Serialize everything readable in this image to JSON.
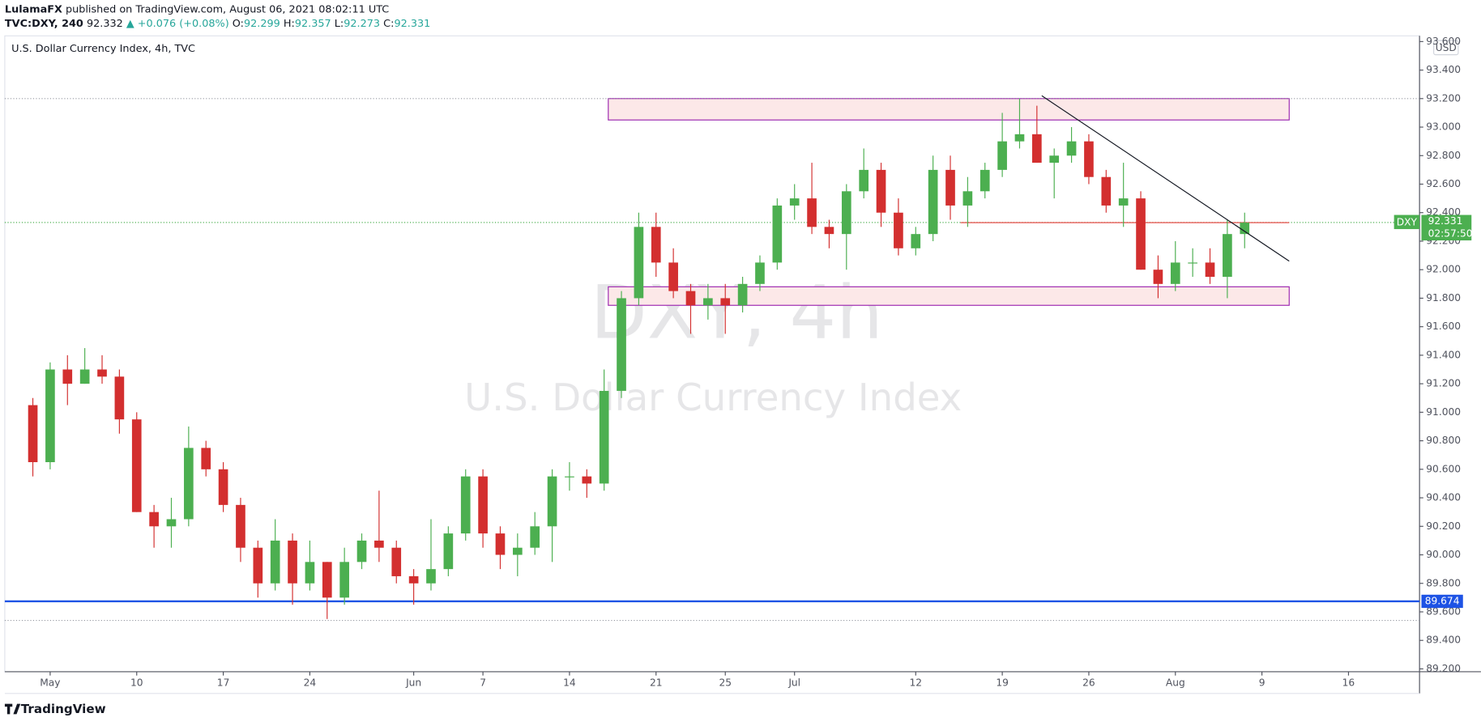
{
  "header": {
    "author": "LulamaFX",
    "published": "published on TradingView.com, August 06, 2021 08:02:11 UTC",
    "symbol": "TVC:DXY, 240",
    "price": "92.332",
    "change": "▲ +0.076 (+0.08%)",
    "open_label": "O:",
    "open": "92.299",
    "high_label": "H:",
    "high": "92.357",
    "low_label": "L:",
    "low": "92.273",
    "close_label": "C:",
    "close": "92.331"
  },
  "chart_data": {
    "type": "candlestick",
    "title": "U.S. Dollar Currency Index, 4h, TVC",
    "watermark": "DXY, 4h",
    "watermark_subtitle": "U.S. Dollar Currency Index",
    "currency": "USD",
    "symbol_tag": "DXY",
    "last_price": 92.331,
    "countdown": "02:57:50",
    "up_color": "#4caf50",
    "down_color": "#d32f2f",
    "categories": [
      null,
      "May",
      null,
      null,
      null,
      null,
      "10",
      null,
      null,
      null,
      null,
      "17",
      null,
      null,
      null,
      null,
      "24",
      null,
      null,
      null,
      null,
      null,
      "Jun",
      null,
      null,
      null,
      "7",
      null,
      null,
      null,
      null,
      "14",
      null,
      null,
      null,
      null,
      "21",
      null,
      null,
      null,
      "25",
      null,
      null,
      null,
      "Jul",
      null,
      null,
      null,
      null,
      null,
      null,
      "12",
      null,
      null,
      null,
      null,
      "19",
      null,
      null,
      null,
      null,
      "26",
      null,
      null,
      null,
      null,
      "Aug",
      null,
      null,
      null,
      null,
      "9",
      null,
      null,
      null,
      null,
      "16"
    ],
    "open": [
      91.05,
      90.65,
      91.3,
      91.2,
      91.3,
      91.25,
      90.95,
      90.3,
      90.2,
      90.25,
      90.75,
      90.6,
      90.35,
      90.05,
      89.8,
      90.1,
      89.8,
      89.95,
      89.7,
      89.95,
      90.1,
      90.05,
      89.85,
      89.8,
      89.9,
      90.15,
      90.55,
      90.15,
      90.0,
      90.05,
      90.2,
      90.55,
      90.55,
      90.5,
      91.15,
      91.8,
      92.3,
      92.05,
      91.85,
      91.75,
      91.8,
      91.75,
      91.9,
      92.05,
      92.45,
      92.5,
      92.3,
      92.25,
      92.55,
      92.7,
      92.4,
      92.15,
      92.25,
      92.7,
      92.45,
      92.55,
      92.7,
      92.9,
      92.95,
      92.75,
      92.8,
      92.9,
      92.65,
      92.45,
      92.5,
      92.0,
      91.9,
      92.05,
      92.05,
      91.95,
      92.25,
      null,
      null,
      null,
      null,
      null,
      null
    ],
    "high": [
      91.1,
      91.35,
      91.4,
      91.45,
      91.4,
      91.3,
      91.0,
      90.35,
      90.4,
      90.9,
      90.8,
      90.65,
      90.4,
      90.1,
      90.25,
      90.15,
      90.1,
      89.95,
      90.05,
      90.15,
      90.45,
      90.1,
      89.9,
      90.25,
      90.2,
      90.6,
      90.6,
      90.2,
      90.15,
      90.3,
      90.6,
      90.65,
      90.6,
      91.3,
      91.85,
      92.4,
      92.4,
      92.15,
      91.9,
      91.9,
      91.9,
      91.95,
      92.1,
      92.5,
      92.6,
      92.75,
      92.35,
      92.6,
      92.85,
      92.75,
      92.5,
      92.3,
      92.8,
      92.8,
      92.65,
      92.75,
      93.1,
      93.2,
      93.15,
      92.85,
      93.0,
      92.95,
      92.7,
      92.75,
      92.55,
      92.1,
      92.2,
      92.15,
      92.15,
      92.35,
      92.4,
      null,
      null,
      null,
      null,
      null,
      null
    ],
    "low": [
      90.55,
      90.6,
      91.05,
      91.2,
      91.2,
      90.85,
      90.3,
      90.05,
      90.05,
      90.2,
      90.55,
      90.3,
      89.95,
      89.7,
      89.75,
      89.65,
      89.75,
      89.55,
      89.65,
      89.9,
      89.95,
      89.8,
      89.65,
      89.75,
      89.85,
      90.1,
      90.05,
      89.9,
      89.85,
      90.0,
      89.95,
      90.45,
      90.4,
      90.45,
      91.1,
      91.75,
      91.95,
      91.8,
      91.55,
      91.65,
      91.55,
      91.7,
      91.85,
      92.0,
      92.35,
      92.25,
      92.15,
      92.0,
      92.5,
      92.3,
      92.1,
      92.1,
      92.2,
      92.35,
      92.3,
      92.5,
      92.65,
      92.85,
      92.75,
      92.5,
      92.75,
      92.6,
      92.4,
      92.3,
      92.0,
      91.8,
      91.85,
      91.95,
      91.9,
      91.8,
      92.15,
      null,
      null,
      null,
      null,
      null,
      null
    ],
    "close": [
      90.65,
      91.3,
      91.2,
      91.3,
      91.25,
      90.95,
      90.3,
      90.2,
      90.25,
      90.75,
      90.6,
      90.35,
      90.05,
      89.8,
      90.1,
      89.8,
      89.95,
      89.7,
      89.95,
      90.1,
      90.05,
      89.85,
      89.8,
      89.9,
      90.15,
      90.55,
      90.15,
      90.0,
      90.05,
      90.2,
      90.55,
      90.55,
      90.5,
      91.15,
      91.8,
      92.3,
      92.05,
      91.85,
      91.75,
      91.8,
      91.75,
      91.9,
      92.05,
      92.45,
      92.5,
      92.3,
      92.25,
      92.55,
      92.7,
      92.4,
      92.15,
      92.25,
      92.7,
      92.45,
      92.55,
      92.7,
      92.9,
      92.95,
      92.75,
      92.8,
      92.9,
      92.65,
      92.45,
      92.5,
      92.0,
      91.9,
      92.05,
      92.05,
      91.95,
      92.25,
      92.33,
      null,
      null,
      null,
      null,
      null,
      null
    ],
    "ylim": [
      89.18,
      93.64
    ],
    "yticks": [
      {
        "value": 89.2,
        "label": "89.200"
      },
      {
        "value": 89.4,
        "label": "89.400"
      },
      {
        "value": 89.6,
        "label": "89.600"
      },
      {
        "value": 89.8,
        "label": "89.800"
      },
      {
        "value": 90.0,
        "label": "90.000"
      },
      {
        "value": 90.2,
        "label": "90.200"
      },
      {
        "value": 90.4,
        "label": "90.400"
      },
      {
        "value": 90.6,
        "label": "90.600"
      },
      {
        "value": 90.8,
        "label": "90.800"
      },
      {
        "value": 91.0,
        "label": "91.000"
      },
      {
        "value": 91.2,
        "label": "91.200"
      },
      {
        "value": 91.4,
        "label": "91.400"
      },
      {
        "value": 91.6,
        "label": "91.600"
      },
      {
        "value": 91.8,
        "label": "91.800"
      },
      {
        "value": 92.0,
        "label": "92.000"
      },
      {
        "value": 92.2,
        "label": "92.200"
      },
      {
        "value": 92.4,
        "label": "92.400"
      },
      {
        "value": 92.6,
        "label": "92.600"
      },
      {
        "value": 92.8,
        "label": "92.800"
      },
      {
        "value": 93.0,
        "label": "93.000"
      },
      {
        "value": 93.2,
        "label": "93.200"
      },
      {
        "value": 93.4,
        "label": "93.400"
      },
      {
        "value": 93.6,
        "label": "93.600"
      }
    ],
    "levels": [
      {
        "value": 89.674,
        "color": "#1e53e5"
      }
    ],
    "dotted_levels": [
      93.2,
      89.54
    ],
    "zones": [
      {
        "from": 93.05,
        "to": 93.2
      },
      {
        "from": 91.75,
        "to": 91.88
      }
    ],
    "zone_fill": "#fce8e8",
    "zone_stroke": "#9c27b0",
    "trend_line": [
      93.22,
      92.06
    ],
    "resistance_line": 92.33
  }
}
